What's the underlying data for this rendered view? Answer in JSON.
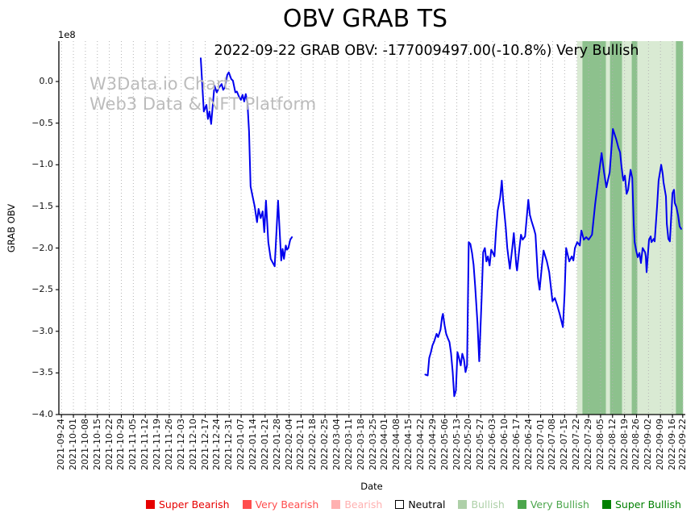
{
  "figure": {
    "title": "OBV GRAB TS",
    "subtitle": "2022-09-22 GRAB OBV: -177009497.00(-10.8%) Very Bullish"
  },
  "watermark": {
    "line1": "W3Data.io Chart",
    "line2": "Web3 Data & NFT Platform"
  },
  "y_axis": {
    "label": "GRAB OBV",
    "offset_label": "1e8",
    "tick_labels": [
      "0.0",
      "−0.5",
      "−1.0",
      "−1.5",
      "−2.0",
      "−2.5",
      "−3.0",
      "−3.5",
      "−4.0"
    ],
    "tick_values": [
      0,
      -0.5,
      -1,
      -1.5,
      -2,
      -2.5,
      -3,
      -3.5,
      -4
    ]
  },
  "x_axis": {
    "label": "Date",
    "tick_labels": [
      "2021-09-24",
      "2021-10-01",
      "2021-10-08",
      "2021-10-15",
      "2021-10-22",
      "2021-10-29",
      "2021-11-05",
      "2021-11-12",
      "2021-11-19",
      "2021-11-26",
      "2021-12-03",
      "2021-12-10",
      "2021-12-17",
      "2021-12-24",
      "2021-12-31",
      "2022-01-07",
      "2022-01-14",
      "2022-01-21",
      "2022-01-28",
      "2022-02-04",
      "2022-02-11",
      "2022-02-18",
      "2022-02-25",
      "2022-03-04",
      "2022-03-11",
      "2022-03-18",
      "2022-03-25",
      "2022-04-01",
      "2022-04-08",
      "2022-04-15",
      "2022-04-22",
      "2022-04-29",
      "2022-05-06",
      "2022-05-13",
      "2022-05-20",
      "2022-05-27",
      "2022-06-03",
      "2022-06-10",
      "2022-06-17",
      "2022-06-24",
      "2022-07-01",
      "2022-07-08",
      "2022-07-15",
      "2022-07-22",
      "2022-07-29",
      "2022-08-05",
      "2022-08-12",
      "2022-08-19",
      "2022-08-26",
      "2022-09-02",
      "2022-09-09",
      "2022-09-16",
      "2022-09-22"
    ]
  },
  "legend": {
    "items": [
      {
        "label": "Super Bearish",
        "color": "#e60000",
        "text_color": "#e60000",
        "filled": true
      },
      {
        "label": "Very Bearish",
        "color": "#ff4d4d",
        "text_color": "#ff4d4d",
        "filled": true
      },
      {
        "label": "Bearish",
        "color": "#ffb0b0",
        "text_color": "#ffb0b0",
        "filled": true
      },
      {
        "label": "Neutral",
        "color": "#ffffff",
        "text_color": "#000000",
        "filled": false
      },
      {
        "label": "Bullish",
        "color": "#aed0a8",
        "text_color": "#aed0a8",
        "filled": true
      },
      {
        "label": "Very Bullish",
        "color": "#4ca64c",
        "text_color": "#4ca64c",
        "filled": true
      },
      {
        "label": "Super Bullish",
        "color": "#008000",
        "text_color": "#008000",
        "filled": true
      }
    ]
  },
  "colors": {
    "line": "#0000ee",
    "grid": "#b3b3b3",
    "axis": "#000000",
    "band_bullish": "#d9ead3",
    "band_very_bullish": "#8dc18d",
    "watermark": "#bcbcbc"
  },
  "chart_data": {
    "type": "line",
    "title": "OBV GRAB TS",
    "xlabel": "Date",
    "ylabel": "GRAB OBV",
    "y_unit": "1e8",
    "ylim": [
      -4.0,
      0.485
    ],
    "x_domain": [
      "2021-09-24",
      "2022-09-23"
    ],
    "grid": "vertical-dotted-weekly",
    "legend_position": "bottom-center",
    "latest": {
      "date": "2022-09-22",
      "obv": -177009497.0,
      "change_pct": -10.8,
      "signal": "Very Bullish"
    },
    "series": [
      {
        "name": "GRAB OBV",
        "points_format": [
          "days_since_2021-09-24",
          "value_x1e8"
        ],
        "segments": [
          [
            [
              81.4,
              0.28
            ],
            [
              83.2,
              -0.36
            ],
            [
              84.7,
              -0.28
            ],
            [
              85.6,
              -0.45
            ],
            [
              86.5,
              -0.36
            ],
            [
              87.5,
              -0.51
            ],
            [
              89.4,
              -0.05
            ],
            [
              90.8,
              -0.13
            ],
            [
              92.2,
              -0.07
            ],
            [
              93.6,
              -0.03
            ],
            [
              94.5,
              -0.1
            ],
            [
              95.5,
              -0.07
            ],
            [
              96.9,
              0.08
            ],
            [
              97.8,
              0.11
            ],
            [
              99.2,
              0.03
            ],
            [
              100.2,
              0.01
            ],
            [
              101.6,
              -0.13
            ],
            [
              102.5,
              -0.12
            ],
            [
              103.9,
              -0.19
            ],
            [
              104.9,
              -0.22
            ],
            [
              105.8,
              -0.16
            ],
            [
              106.8,
              -0.24
            ],
            [
              107.7,
              -0.15
            ],
            [
              108.7,
              -0.25
            ],
            [
              109.6,
              -0.6
            ],
            [
              110.5,
              -1.26
            ],
            [
              111.5,
              -1.36
            ],
            [
              112.9,
              -1.5
            ],
            [
              113.6,
              -1.6
            ],
            [
              114.3,
              -1.69
            ],
            [
              115.2,
              -1.53
            ],
            [
              116.4,
              -1.64
            ],
            [
              117.6,
              -1.56
            ],
            [
              118.5,
              -1.81
            ],
            [
              119.5,
              -1.43
            ],
            [
              120.9,
              -1.93
            ],
            [
              122.3,
              -2.13
            ],
            [
              124.6,
              -2.22
            ],
            [
              126.6,
              -1.43
            ],
            [
              128.4,
              -2.15
            ],
            [
              129.2,
              -2.01
            ],
            [
              130.0,
              -2.13
            ],
            [
              131.1,
              -1.97
            ],
            [
              131.8,
              -2.02
            ],
            [
              132.6,
              -2.0
            ],
            [
              133.7,
              -1.9
            ],
            [
              134.7,
              -1.87
            ]
          ],
          [
            [
              212.6,
              -3.52
            ],
            [
              214.0,
              -3.53
            ],
            [
              214.9,
              -3.32
            ],
            [
              215.9,
              -3.25
            ],
            [
              216.8,
              -3.17
            ],
            [
              217.8,
              -3.12
            ],
            [
              219.2,
              -3.03
            ],
            [
              220.1,
              -3.07
            ],
            [
              221.5,
              -2.98
            ],
            [
              222.4,
              -2.83
            ],
            [
              222.9,
              -2.79
            ],
            [
              223.9,
              -2.93
            ],
            [
              224.8,
              -3.03
            ],
            [
              225.7,
              -3.08
            ],
            [
              226.7,
              -3.13
            ],
            [
              227.6,
              -3.26
            ],
            [
              228.6,
              -3.49
            ],
            [
              229.5,
              -3.78
            ],
            [
              230.5,
              -3.71
            ],
            [
              231.4,
              -3.25
            ],
            [
              232.3,
              -3.32
            ],
            [
              233.3,
              -3.41
            ],
            [
              234.2,
              -3.27
            ],
            [
              235.2,
              -3.34
            ],
            [
              236.1,
              -3.49
            ],
            [
              237.0,
              -3.41
            ],
            [
              238.0,
              -1.93
            ],
            [
              238.9,
              -1.95
            ],
            [
              239.9,
              -2.06
            ],
            [
              240.8,
              -2.2
            ],
            [
              241.7,
              -2.45
            ],
            [
              243.1,
              -2.91
            ],
            [
              244.1,
              -3.36
            ],
            [
              245.5,
              -2.6
            ],
            [
              246.4,
              -2.05
            ],
            [
              247.4,
              -2.0
            ],
            [
              248.3,
              -2.16
            ],
            [
              249.2,
              -2.1
            ],
            [
              250.2,
              -2.21
            ],
            [
              251.1,
              -2.02
            ],
            [
              252.1,
              -2.06
            ],
            [
              253.0,
              -2.1
            ],
            [
              253.9,
              -1.8
            ],
            [
              254.9,
              -1.55
            ],
            [
              256.3,
              -1.4
            ],
            [
              257.3,
              -1.19
            ],
            [
              258.2,
              -1.45
            ],
            [
              259.6,
              -1.75
            ],
            [
              260.5,
              -2.0
            ],
            [
              262.0,
              -2.25
            ],
            [
              263.4,
              -2.0
            ],
            [
              264.3,
              -1.82
            ],
            [
              265.7,
              -2.2
            ],
            [
              266.2,
              -2.27
            ],
            [
              267.6,
              -2.0
            ],
            [
              268.5,
              -1.84
            ],
            [
              269.5,
              -1.9
            ],
            [
              270.9,
              -1.86
            ],
            [
              271.8,
              -1.65
            ],
            [
              272.8,
              -1.42
            ],
            [
              273.7,
              -1.6
            ],
            [
              274.6,
              -1.67
            ],
            [
              276.1,
              -1.77
            ],
            [
              277.0,
              -1.84
            ],
            [
              278.4,
              -2.35
            ],
            [
              279.4,
              -2.5
            ],
            [
              280.8,
              -2.2
            ],
            [
              281.7,
              -2.03
            ],
            [
              283.6,
              -2.16
            ],
            [
              285.0,
              -2.29
            ],
            [
              286.9,
              -2.64
            ],
            [
              288.3,
              -2.6
            ],
            [
              289.7,
              -2.69
            ],
            [
              291.2,
              -2.8
            ],
            [
              293.0,
              -2.95
            ],
            [
              294.0,
              -2.55
            ],
            [
              294.9,
              -2.0
            ],
            [
              296.7,
              -2.16
            ],
            [
              298.2,
              -2.1
            ],
            [
              299.1,
              -2.15
            ],
            [
              300.0,
              -2.0
            ],
            [
              301.4,
              -1.93
            ],
            [
              302.9,
              -1.97
            ],
            [
              303.8,
              -1.79
            ],
            [
              305.2,
              -1.9
            ],
            [
              306.6,
              -1.87
            ],
            [
              308.0,
              -1.9
            ],
            [
              310.0,
              -1.84
            ],
            [
              311.8,
              -1.48
            ],
            [
              313.7,
              -1.16
            ],
            [
              315.6,
              -0.86
            ],
            [
              317.0,
              -1.09
            ],
            [
              318.4,
              -1.27
            ],
            [
              320.3,
              -1.09
            ],
            [
              322.2,
              -0.57
            ],
            [
              324.1,
              -0.69
            ],
            [
              325.5,
              -0.8
            ],
            [
              326.4,
              -0.85
            ],
            [
              327.3,
              -1.03
            ],
            [
              328.3,
              -1.19
            ],
            [
              329.2,
              -1.13
            ],
            [
              330.2,
              -1.35
            ],
            [
              331.1,
              -1.3
            ],
            [
              332.5,
              -1.06
            ],
            [
              333.5,
              -1.16
            ],
            [
              334.4,
              -1.72
            ],
            [
              334.9,
              -1.93
            ],
            [
              335.8,
              -2.03
            ],
            [
              336.7,
              -2.11
            ],
            [
              337.7,
              -2.06
            ],
            [
              338.6,
              -2.18
            ],
            [
              339.6,
              -2.0
            ],
            [
              341.0,
              -2.05
            ],
            [
              341.4,
              -2.1
            ],
            [
              341.9,
              -2.29
            ],
            [
              343.3,
              -1.9
            ],
            [
              344.3,
              -1.86
            ],
            [
              344.7,
              -1.93
            ],
            [
              346.1,
              -1.89
            ],
            [
              346.6,
              -1.92
            ],
            [
              348.0,
              -1.5
            ],
            [
              348.9,
              -1.19
            ],
            [
              350.4,
              -1.0
            ],
            [
              351.3,
              -1.11
            ],
            [
              351.8,
              -1.21
            ],
            [
              353.2,
              -1.38
            ],
            [
              353.7,
              -1.71
            ],
            [
              354.6,
              -1.89
            ],
            [
              355.5,
              -1.92
            ],
            [
              357.0,
              -1.34
            ],
            [
              357.9,
              -1.3
            ],
            [
              358.4,
              -1.46
            ],
            [
              359.3,
              -1.51
            ],
            [
              360.3,
              -1.61
            ],
            [
              361.2,
              -1.74
            ],
            [
              362.1,
              -1.77
            ]
          ]
        ]
      }
    ],
    "signal_bands": [
      {
        "from_day": 301.3,
        "to_day": 304.4,
        "signal": "Bullish"
      },
      {
        "from_day": 304.4,
        "to_day": 318.1,
        "signal": "Very Bullish"
      },
      {
        "from_day": 318.1,
        "to_day": 320.5,
        "signal": "Bullish"
      },
      {
        "from_day": 320.5,
        "to_day": 327.6,
        "signal": "Very Bullish"
      },
      {
        "from_day": 327.6,
        "to_day": 333.2,
        "signal": "Bullish"
      },
      {
        "from_day": 333.2,
        "to_day": 336.5,
        "signal": "Very Bullish"
      },
      {
        "from_day": 336.5,
        "to_day": 359.0,
        "signal": "Bullish"
      },
      {
        "from_day": 359.0,
        "to_day": 363.2,
        "signal": "Very Bullish"
      }
    ]
  }
}
